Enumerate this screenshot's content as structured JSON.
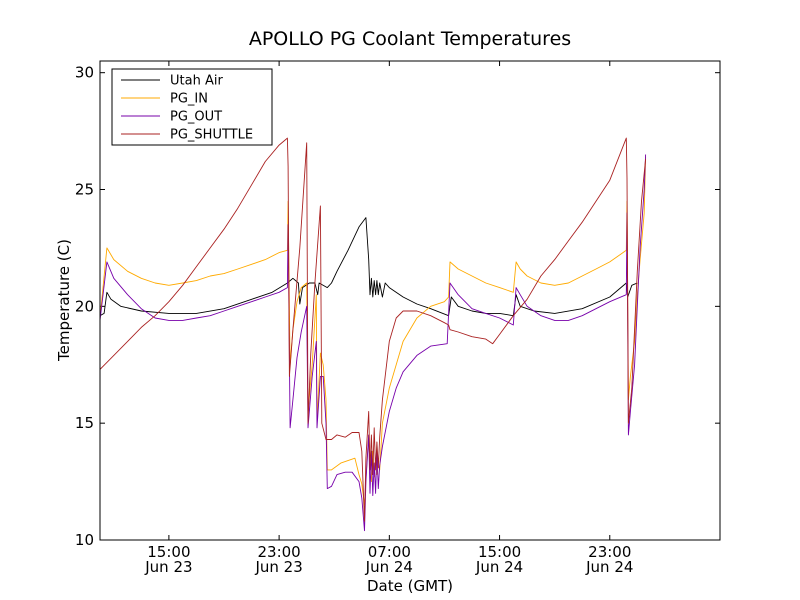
{
  "chart_data": {
    "type": "line",
    "title": "APOLLO PG Coolant Temperatures",
    "xlabel": "Date (GMT)",
    "ylabel": "Temperature (C)",
    "xlim": [
      0,
      45
    ],
    "ylim": [
      10,
      30.5
    ],
    "x_unit": "hours from 10:00 GMT Jun 23",
    "x_ticks": [
      {
        "value": 5,
        "line1": "15:00",
        "line2": "Jun 23"
      },
      {
        "value": 13,
        "line1": "23:00",
        "line2": "Jun 23"
      },
      {
        "value": 21,
        "line1": "07:00",
        "line2": "Jun 24"
      },
      {
        "value": 29,
        "line1": "15:00",
        "line2": "Jun 24"
      },
      {
        "value": 37,
        "line1": "23:00",
        "line2": "Jun 24"
      }
    ],
    "y_ticks": [
      10,
      15,
      20,
      25,
      30
    ],
    "legend_position": "top-left",
    "series": [
      {
        "name": "Utah Air",
        "color": "#000000",
        "points": [
          [
            0,
            19.6
          ],
          [
            0.3,
            19.7
          ],
          [
            0.5,
            20.6
          ],
          [
            0.8,
            20.3
          ],
          [
            1.5,
            20.0
          ],
          [
            3,
            19.8
          ],
          [
            5,
            19.7
          ],
          [
            7,
            19.7
          ],
          [
            9,
            19.9
          ],
          [
            11,
            20.3
          ],
          [
            12.5,
            20.6
          ],
          [
            13.6,
            21.0
          ],
          [
            14.0,
            21.2
          ],
          [
            14.4,
            21.0
          ],
          [
            14.5,
            20.1
          ],
          [
            14.7,
            20.8
          ],
          [
            15.2,
            21.0
          ],
          [
            15.6,
            21.0
          ],
          [
            15.8,
            20.5
          ],
          [
            15.9,
            21.0
          ],
          [
            16.5,
            20.8
          ],
          [
            16.8,
            21.0
          ],
          [
            17.2,
            21.5
          ],
          [
            18,
            22.4
          ],
          [
            18.8,
            23.4
          ],
          [
            19.3,
            23.8
          ],
          [
            19.5,
            22.0
          ],
          [
            19.6,
            20.5
          ],
          [
            19.7,
            21.2
          ],
          [
            19.8,
            20.4
          ],
          [
            19.9,
            21.1
          ],
          [
            20.0,
            20.5
          ],
          [
            20.1,
            21.1
          ],
          [
            20.2,
            20.5
          ],
          [
            20.3,
            21.0
          ],
          [
            20.5,
            20.4
          ],
          [
            20.7,
            21.0
          ],
          [
            21,
            20.8
          ],
          [
            22,
            20.4
          ],
          [
            23,
            20.1
          ],
          [
            24,
            19.9
          ],
          [
            25.3,
            19.6
          ],
          [
            25.5,
            20.4
          ],
          [
            26,
            20.0
          ],
          [
            27,
            19.8
          ],
          [
            28,
            19.7
          ],
          [
            29,
            19.7
          ],
          [
            30,
            19.6
          ],
          [
            30.2,
            20.5
          ],
          [
            30.5,
            20.0
          ],
          [
            31.5,
            19.8
          ],
          [
            33,
            19.7
          ],
          [
            35,
            19.9
          ],
          [
            37,
            20.4
          ],
          [
            38.2,
            21.0
          ],
          [
            38.3,
            20.4
          ],
          [
            38.6,
            20.9
          ],
          [
            39,
            21.0
          ]
        ]
      },
      {
        "name": "PG_IN",
        "color": "#ffaa00",
        "points": [
          [
            0,
            19.5
          ],
          [
            0.5,
            22.5
          ],
          [
            1,
            22.0
          ],
          [
            2,
            21.5
          ],
          [
            3,
            21.2
          ],
          [
            4,
            21.0
          ],
          [
            5,
            20.9
          ],
          [
            6,
            21.0
          ],
          [
            7,
            21.1
          ],
          [
            8,
            21.3
          ],
          [
            9,
            21.4
          ],
          [
            10,
            21.6
          ],
          [
            11,
            21.8
          ],
          [
            12,
            22.0
          ],
          [
            13,
            22.3
          ],
          [
            13.6,
            22.4
          ],
          [
            13.65,
            24.5
          ],
          [
            13.8,
            17.5
          ],
          [
            14.0,
            19.0
          ],
          [
            14.3,
            20.2
          ],
          [
            14.6,
            20.8
          ],
          [
            15,
            21.0
          ],
          [
            15.1,
            15.5
          ],
          [
            15.4,
            17.5
          ],
          [
            15.7,
            20.5
          ],
          [
            15.75,
            15.0
          ],
          [
            16,
            18.0
          ],
          [
            16.2,
            17.5
          ],
          [
            16.4,
            16.0
          ],
          [
            16.5,
            13.0
          ],
          [
            16.8,
            13.0
          ],
          [
            17.5,
            13.3
          ],
          [
            18,
            13.4
          ],
          [
            18.5,
            13.5
          ],
          [
            18.8,
            12.8
          ],
          [
            19.0,
            12.4
          ],
          [
            19.2,
            11.5
          ],
          [
            19.3,
            12.6
          ],
          [
            19.5,
            14.5
          ],
          [
            19.7,
            12.5
          ],
          [
            19.8,
            13.8
          ],
          [
            19.9,
            12.7
          ],
          [
            20.0,
            13.5
          ],
          [
            20.1,
            12.8
          ],
          [
            20.2,
            13.2
          ],
          [
            20.3,
            13.0
          ],
          [
            20.5,
            15.0
          ],
          [
            21,
            16.5
          ],
          [
            21.5,
            17.5
          ],
          [
            22,
            18.5
          ],
          [
            23,
            19.5
          ],
          [
            24,
            20.0
          ],
          [
            25,
            20.2
          ],
          [
            25.3,
            20.4
          ],
          [
            25.4,
            21.9
          ],
          [
            26,
            21.6
          ],
          [
            27,
            21.3
          ],
          [
            28,
            21.0
          ],
          [
            29,
            20.8
          ],
          [
            30,
            20.6
          ],
          [
            30.2,
            21.9
          ],
          [
            30.5,
            21.6
          ],
          [
            31,
            21.3
          ],
          [
            32,
            21.0
          ],
          [
            33,
            20.9
          ],
          [
            34,
            21.0
          ],
          [
            35,
            21.3
          ],
          [
            36,
            21.6
          ],
          [
            37,
            21.9
          ],
          [
            38.2,
            22.4
          ],
          [
            38.25,
            24.5
          ],
          [
            38.35,
            16.0
          ],
          [
            38.5,
            17.0
          ],
          [
            38.8,
            18.5
          ],
          [
            39,
            20.5
          ],
          [
            39.2,
            22.0
          ],
          [
            39.5,
            24.0
          ],
          [
            39.6,
            26.4
          ]
        ]
      },
      {
        "name": "PG_OUT",
        "color": "#7700aa",
        "points": [
          [
            0,
            19.4
          ],
          [
            0.5,
            21.9
          ],
          [
            1,
            21.2
          ],
          [
            2,
            20.5
          ],
          [
            3,
            19.9
          ],
          [
            4,
            19.5
          ],
          [
            5,
            19.4
          ],
          [
            6,
            19.4
          ],
          [
            7,
            19.5
          ],
          [
            8,
            19.6
          ],
          [
            9,
            19.8
          ],
          [
            10,
            20.0
          ],
          [
            11,
            20.2
          ],
          [
            12,
            20.4
          ],
          [
            13,
            20.6
          ],
          [
            13.6,
            20.8
          ],
          [
            13.65,
            23.5
          ],
          [
            13.8,
            14.8
          ],
          [
            14.0,
            16.0
          ],
          [
            14.3,
            17.8
          ],
          [
            14.6,
            18.9
          ],
          [
            15,
            20.0
          ],
          [
            15.1,
            14.8
          ],
          [
            15.4,
            17.0
          ],
          [
            15.7,
            18.5
          ],
          [
            15.75,
            14.8
          ],
          [
            16,
            17.0
          ],
          [
            16.2,
            17.0
          ],
          [
            16.4,
            15.0
          ],
          [
            16.5,
            12.2
          ],
          [
            16.8,
            12.3
          ],
          [
            17.2,
            12.8
          ],
          [
            17.8,
            12.9
          ],
          [
            18.3,
            12.9
          ],
          [
            18.8,
            12.5
          ],
          [
            19.0,
            11.8
          ],
          [
            19.2,
            10.4
          ],
          [
            19.3,
            12.5
          ],
          [
            19.5,
            14.5
          ],
          [
            19.6,
            12.0
          ],
          [
            19.7,
            13.8
          ],
          [
            19.8,
            11.9
          ],
          [
            19.9,
            13.3
          ],
          [
            20.0,
            12.0
          ],
          [
            20.1,
            13.8
          ],
          [
            20.2,
            12.2
          ],
          [
            20.3,
            13.2
          ],
          [
            20.5,
            14.0
          ],
          [
            21,
            15.5
          ],
          [
            21.5,
            16.5
          ],
          [
            22,
            17.2
          ],
          [
            23,
            17.9
          ],
          [
            24,
            18.3
          ],
          [
            25.2,
            18.4
          ],
          [
            25.4,
            21.0
          ],
          [
            26,
            20.5
          ],
          [
            27,
            19.9
          ],
          [
            28,
            19.7
          ],
          [
            29,
            19.5
          ],
          [
            30,
            19.2
          ],
          [
            30.2,
            20.8
          ],
          [
            30.5,
            20.5
          ],
          [
            31,
            20.0
          ],
          [
            32,
            19.6
          ],
          [
            33,
            19.4
          ],
          [
            34,
            19.4
          ],
          [
            35,
            19.6
          ],
          [
            36,
            19.9
          ],
          [
            37,
            20.2
          ],
          [
            38.2,
            20.5
          ],
          [
            38.25,
            24.0
          ],
          [
            38.35,
            14.5
          ],
          [
            38.5,
            15.5
          ],
          [
            38.8,
            17.5
          ],
          [
            39,
            20.0
          ],
          [
            39.2,
            22.5
          ],
          [
            39.5,
            25.0
          ],
          [
            39.6,
            26.5
          ]
        ]
      },
      {
        "name": "PG_SHUTTLE",
        "color": "#aa2222",
        "points": [
          [
            0,
            17.3
          ],
          [
            1,
            17.9
          ],
          [
            2,
            18.5
          ],
          [
            3,
            19.1
          ],
          [
            4,
            19.6
          ],
          [
            5,
            20.2
          ],
          [
            6,
            20.9
          ],
          [
            7,
            21.7
          ],
          [
            8,
            22.5
          ],
          [
            9,
            23.3
          ],
          [
            10,
            24.2
          ],
          [
            11,
            25.2
          ],
          [
            12,
            26.2
          ],
          [
            13,
            26.9
          ],
          [
            13.6,
            27.2
          ],
          [
            13.65,
            26.0
          ],
          [
            13.75,
            17.0
          ],
          [
            14,
            19.0
          ],
          [
            14.5,
            22.5
          ],
          [
            15.0,
            27.0
          ],
          [
            15.1,
            15.0
          ],
          [
            15.3,
            18.0
          ],
          [
            15.6,
            21.0
          ],
          [
            16,
            24.3
          ],
          [
            16.1,
            15.0
          ],
          [
            16.4,
            14.3
          ],
          [
            16.8,
            14.3
          ],
          [
            17.2,
            14.5
          ],
          [
            17.8,
            14.4
          ],
          [
            18.3,
            14.6
          ],
          [
            18.8,
            14.6
          ],
          [
            19.0,
            13.8
          ],
          [
            19.2,
            10.8
          ],
          [
            19.3,
            13.5
          ],
          [
            19.5,
            15.5
          ],
          [
            19.6,
            13.0
          ],
          [
            19.7,
            14.5
          ],
          [
            19.8,
            12.8
          ],
          [
            19.9,
            14.8
          ],
          [
            20.0,
            13.0
          ],
          [
            20.1,
            14.2
          ],
          [
            20.2,
            13.1
          ],
          [
            20.3,
            14.4
          ],
          [
            20.5,
            16.0
          ],
          [
            21,
            18.5
          ],
          [
            21.5,
            19.5
          ],
          [
            22,
            19.8
          ],
          [
            23,
            19.8
          ],
          [
            24,
            19.6
          ],
          [
            25,
            19.3
          ],
          [
            25.3,
            19.2
          ],
          [
            25.4,
            19.0
          ],
          [
            26,
            18.9
          ],
          [
            27,
            18.7
          ],
          [
            28,
            18.6
          ],
          [
            28.5,
            18.4
          ],
          [
            29,
            18.8
          ],
          [
            30,
            19.6
          ],
          [
            31,
            20.3
          ],
          [
            32,
            21.3
          ],
          [
            33,
            22.0
          ],
          [
            34,
            22.8
          ],
          [
            35,
            23.6
          ],
          [
            36,
            24.5
          ],
          [
            37,
            25.4
          ],
          [
            38.2,
            27.2
          ],
          [
            38.25,
            25.5
          ],
          [
            38.35,
            15.0
          ],
          [
            38.6,
            16.5
          ],
          [
            39,
            21.5
          ],
          [
            39.3,
            24.5
          ],
          [
            39.6,
            26.3
          ]
        ]
      }
    ]
  }
}
